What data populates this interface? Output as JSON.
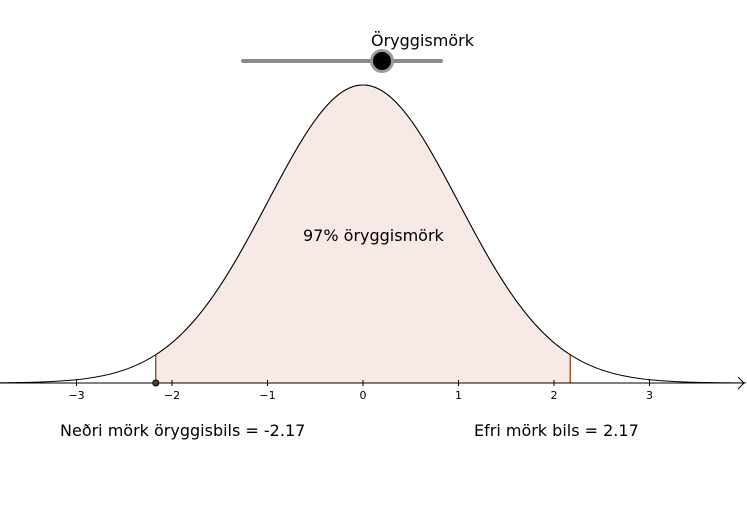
{
  "slider": {
    "label": "Öryggismörk",
    "value": 0.97
  },
  "plot": {
    "mean": 0,
    "sd": 1,
    "confidence_text": "97% öryggismörk",
    "lower_text": "Neðri mörk öryggisbils = -2.17",
    "upper_text": "Efri mörk bils = 2.17",
    "lower_bound": -2.17,
    "upper_bound": 2.17,
    "x_ticks": [
      -3,
      -2,
      -1,
      0,
      1,
      2,
      3
    ],
    "x_tick_labels": [
      "−3",
      "−2",
      "−1",
      "0",
      "1",
      "2",
      "3"
    ],
    "colors": {
      "fill": "#f6e9e6",
      "edge": "#8b3a0e",
      "curve": "#000000",
      "axis": "#000000"
    }
  }
}
